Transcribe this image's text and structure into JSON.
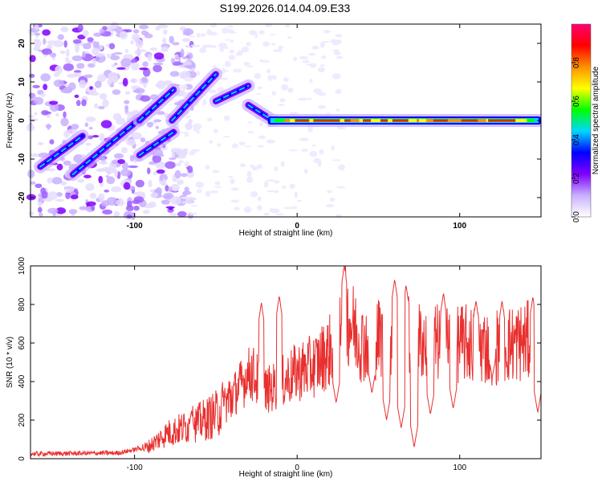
{
  "title": "S199.2026.014.04.09.E33",
  "chart_data": [
    {
      "type": "heatmap",
      "name": "spectrogram",
      "xlabel": "Height of straight line (km)",
      "ylabel": "Frequency (Hz)",
      "xlim": [
        -164,
        150
      ],
      "ylim": [
        -25,
        25
      ],
      "xticks": [
        -100,
        0,
        100
      ],
      "yticks": [
        -20,
        -10,
        0,
        10,
        20
      ],
      "ridges": [
        {
          "x0": -158,
          "y0": -12,
          "x1": -132,
          "y1": -4
        },
        {
          "x0": -138,
          "y0": -14,
          "x1": -98,
          "y1": 0
        },
        {
          "x0": -97,
          "y0": -9,
          "x1": -76,
          "y1": -3
        },
        {
          "x0": -97,
          "y0": 0,
          "x1": -76,
          "y1": 8
        },
        {
          "x0": -77,
          "y0": 0,
          "x1": -50,
          "y1": 12
        },
        {
          "x0": -50,
          "y0": 5,
          "x1": -30,
          "y1": 9
        },
        {
          "x0": -30,
          "y0": 4,
          "x1": -15,
          "y1": 0
        }
      ],
      "hot_band": {
        "y": 0,
        "x_start": -18,
        "x_end": 148
      },
      "colorbar": {
        "label": "Normalized spectral amplitude",
        "range": [
          0,
          1
        ],
        "ticks": [
          "0.0",
          "0.2",
          "0.4",
          "0.6",
          "0.8"
        ],
        "tick_values": [
          0,
          0.2,
          0.4,
          0.6,
          0.8
        ],
        "colors": [
          "#ffffff",
          "#c9b0ff",
          "#8000ff",
          "#0000ff",
          "#00d7ff",
          "#00ff00",
          "#ffff00",
          "#ff9000",
          "#ff0000",
          "#ff0070"
        ]
      }
    },
    {
      "type": "line",
      "name": "snr",
      "xlabel": "Height of straight line (km)",
      "ylabel": "SNR (10 * v/v)",
      "xlim": [
        -164,
        150
      ],
      "ylim": [
        0,
        1000
      ],
      "xticks": [
        -100,
        0,
        100
      ],
      "yticks": [
        0,
        200,
        400,
        600,
        800,
        1000
      ],
      "line_color": "#e8302f",
      "envelope": [
        {
          "x": -164,
          "y": 25
        },
        {
          "x": -110,
          "y": 30
        },
        {
          "x": -92,
          "y": 60
        },
        {
          "x": -80,
          "y": 130
        },
        {
          "x": -70,
          "y": 160
        },
        {
          "x": -60,
          "y": 190
        },
        {
          "x": -50,
          "y": 230
        },
        {
          "x": -42,
          "y": 300
        },
        {
          "x": -35,
          "y": 380
        },
        {
          "x": -28,
          "y": 450
        },
        {
          "x": -20,
          "y": 350
        },
        {
          "x": -12,
          "y": 380
        },
        {
          "x": 0,
          "y": 450
        },
        {
          "x": 10,
          "y": 480
        },
        {
          "x": 20,
          "y": 560
        },
        {
          "x": 28,
          "y": 780
        },
        {
          "x": 40,
          "y": 600
        },
        {
          "x": 60,
          "y": 650
        },
        {
          "x": 80,
          "y": 600
        },
        {
          "x": 100,
          "y": 600
        },
        {
          "x": 120,
          "y": 580
        },
        {
          "x": 150,
          "y": 620
        }
      ],
      "peaks": [
        {
          "x": -98,
          "y": 70
        },
        {
          "x": -80,
          "y": 140
        },
        {
          "x": -65,
          "y": 250
        },
        {
          "x": -45,
          "y": 280
        },
        {
          "x": -30,
          "y": 400
        },
        {
          "x": -22,
          "y": 810
        },
        {
          "x": -11,
          "y": 845
        },
        {
          "x": 29,
          "y": 1000
        },
        {
          "x": 60,
          "y": 930
        },
        {
          "x": 67,
          "y": 900
        },
        {
          "x": 90,
          "y": 860
        },
        {
          "x": 110,
          "y": 820
        },
        {
          "x": 126,
          "y": 820
        },
        {
          "x": 145,
          "y": 840
        }
      ],
      "dips": [
        {
          "x": 24,
          "y": 290
        },
        {
          "x": 46,
          "y": 340
        },
        {
          "x": 55,
          "y": 200
        },
        {
          "x": 64,
          "y": 160
        },
        {
          "x": 72,
          "y": 60
        },
        {
          "x": 82,
          "y": 230
        },
        {
          "x": 96,
          "y": 260
        },
        {
          "x": 120,
          "y": 420
        },
        {
          "x": 148,
          "y": 240
        }
      ]
    }
  ]
}
